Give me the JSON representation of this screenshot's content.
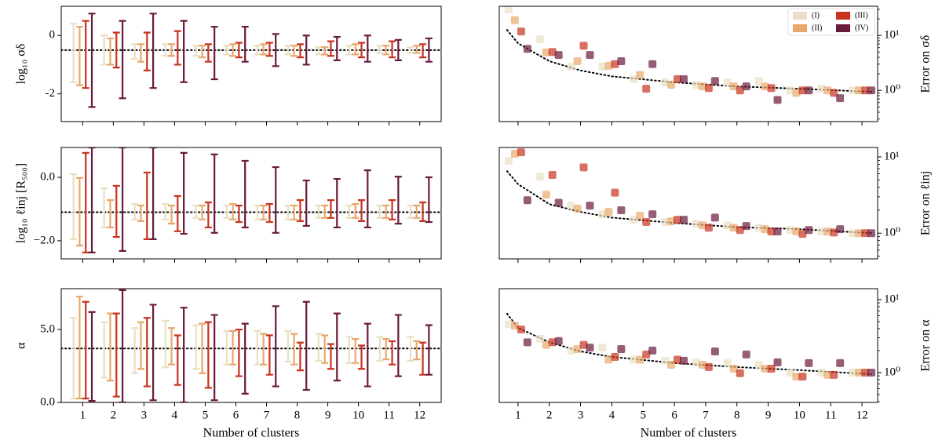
{
  "chart_data": [
    {
      "type": "errorbar",
      "ylabel": "log₁₀ σδ",
      "x": [
        1,
        2,
        3,
        4,
        5,
        6,
        7,
        8,
        9,
        10,
        11,
        12
      ],
      "xlim": [
        0.3,
        12.7
      ],
      "xticks": [
        1,
        2,
        3,
        4,
        5,
        6,
        7,
        8,
        9,
        10,
        11,
        12
      ],
      "xtick_labels": false,
      "ylim": [
        -2.95,
        1.0
      ],
      "yticks": [
        -2,
        0
      ],
      "reference": -0.5,
      "series": [
        {
          "color": "#e8dfc4",
          "low": [
            -1.6,
            -1.0,
            -0.8,
            -0.7,
            -0.7,
            -0.65,
            -0.65,
            -0.65,
            -0.65,
            -0.65,
            -0.6,
            -0.6
          ],
          "high": [
            0.4,
            0.0,
            -0.3,
            -0.3,
            -0.35,
            -0.35,
            -0.35,
            -0.35,
            -0.4,
            -0.35,
            -0.35,
            -0.4
          ]
        },
        {
          "color": "#e8a86c",
          "low": [
            -1.7,
            -1.0,
            -0.9,
            -0.7,
            -0.75,
            -0.7,
            -0.65,
            -0.7,
            -0.65,
            -0.65,
            -0.65,
            -0.6
          ],
          "high": [
            0.3,
            -0.1,
            -0.3,
            -0.3,
            -0.35,
            -0.3,
            -0.3,
            -0.35,
            -0.4,
            -0.3,
            -0.35,
            -0.35
          ]
        },
        {
          "color": "#c8321e",
          "low": [
            -1.8,
            -1.1,
            -1.2,
            -1.0,
            -0.9,
            -0.75,
            -0.7,
            -0.75,
            -0.7,
            -0.75,
            -0.75,
            -0.75
          ],
          "high": [
            0.5,
            0.1,
            0.1,
            0.15,
            -0.3,
            -0.25,
            -0.25,
            -0.3,
            -0.2,
            -0.25,
            -0.2,
            -0.3
          ]
        },
        {
          "color": "#6a1a3a",
          "low": [
            -2.45,
            -2.15,
            -1.8,
            -1.6,
            -1.5,
            -0.9,
            -1.05,
            -1.0,
            -0.85,
            -0.9,
            -0.85,
            -0.9
          ],
          "high": [
            0.75,
            0.5,
            0.75,
            0.5,
            0.3,
            0.3,
            0.05,
            0.0,
            -0.05,
            0.0,
            -0.15,
            -0.1
          ]
        }
      ]
    },
    {
      "type": "errorbar",
      "ylabel": "log₁₀ ℓinj [R₅₀₀]",
      "x": [
        1,
        2,
        3,
        4,
        5,
        6,
        7,
        8,
        9,
        10,
        11,
        12
      ],
      "xlim": [
        0.3,
        12.7
      ],
      "xticks": [
        1,
        2,
        3,
        4,
        5,
        6,
        7,
        8,
        9,
        10,
        11,
        12
      ],
      "xtick_labels": false,
      "ylim": [
        -2.57,
        0.94
      ],
      "yticks": [
        {
          "value": -2,
          "label": "−2.0"
        },
        {
          "value": 0,
          "label": "0.0"
        }
      ],
      "reference": -1.1,
      "series": [
        {
          "color": "#e8dfc4",
          "low": [
            -1.95,
            -1.58,
            -1.33,
            -1.33,
            -1.28,
            -1.28,
            -1.33,
            -1.33,
            -1.28,
            -1.28,
            -1.28,
            -1.28
          ],
          "high": [
            0.1,
            -0.35,
            -0.84,
            -0.84,
            -0.89,
            -0.89,
            -0.89,
            -0.89,
            -0.89,
            -0.89,
            -0.89,
            -0.89
          ]
        },
        {
          "color": "#e8a86c",
          "low": [
            -2.15,
            -1.58,
            -1.38,
            -1.46,
            -1.33,
            -1.33,
            -1.33,
            -1.33,
            -1.28,
            -1.28,
            -1.28,
            -1.28
          ],
          "high": [
            -0.02,
            -0.72,
            -0.89,
            -0.89,
            -0.89,
            -0.84,
            -0.89,
            -0.89,
            -0.89,
            -0.84,
            -0.89,
            -0.89
          ]
        },
        {
          "color": "#c8321e",
          "low": [
            -2.37,
            -1.88,
            -1.95,
            -1.7,
            -1.58,
            -1.41,
            -1.41,
            -1.38,
            -1.28,
            -1.38,
            -1.33,
            -1.38
          ],
          "high": [
            0.77,
            -0.27,
            0.15,
            -0.59,
            -0.79,
            -0.89,
            -0.84,
            -0.72,
            -0.72,
            -0.72,
            -0.72,
            -0.79
          ]
        },
        {
          "color": "#6a1a3a",
          "low": [
            -2.37,
            -2.32,
            -1.95,
            -1.78,
            -1.75,
            -1.58,
            -1.75,
            -1.53,
            -1.58,
            -1.58,
            -1.46,
            -1.41
          ],
          "high": [
            0.94,
            0.94,
            0.94,
            0.77,
            0.72,
            0.52,
            0.32,
            -0.1,
            -0.05,
            0.22,
            0.02,
            0.0
          ]
        }
      ]
    },
    {
      "type": "errorbar",
      "ylabel": "α",
      "xlabel": "Number of clusters",
      "x": [
        1,
        2,
        3,
        4,
        5,
        6,
        7,
        8,
        9,
        10,
        11,
        12
      ],
      "xlim": [
        0.3,
        12.7
      ],
      "xticks": [
        1,
        2,
        3,
        4,
        5,
        6,
        7,
        8,
        9,
        10,
        11,
        12
      ],
      "xtick_labels": true,
      "ylim": [
        0,
        7.8
      ],
      "yticks": [
        {
          "value": 0,
          "label": "0.0"
        },
        {
          "value": 5,
          "label": "5.0"
        }
      ],
      "reference": 3.7,
      "series": [
        {
          "color": "#e8dfc4",
          "low": [
            0.27,
            1.7,
            2.0,
            2.4,
            2.3,
            2.6,
            2.6,
            2.8,
            2.85,
            2.7,
            2.85,
            2.85
          ],
          "high": [
            5.8,
            5.5,
            5.1,
            5.6,
            5.3,
            4.9,
            4.9,
            4.9,
            4.7,
            4.5,
            4.5,
            4.5
          ]
        },
        {
          "color": "#e8a86c",
          "low": [
            0.27,
            1.5,
            2.3,
            2.6,
            2.0,
            2.6,
            2.6,
            2.6,
            2.7,
            2.7,
            2.95,
            2.95
          ],
          "high": [
            7.26,
            6.1,
            5.5,
            5.1,
            5.4,
            4.9,
            4.7,
            4.7,
            4.6,
            4.35,
            4.35,
            4.2
          ]
        },
        {
          "color": "#c8321e",
          "low": [
            0.27,
            0.4,
            1.1,
            1.2,
            1.0,
            1.8,
            1.9,
            2.2,
            2.3,
            2.3,
            2.6,
            1.9
          ],
          "high": [
            6.9,
            6.1,
            5.8,
            4.6,
            5.5,
            5.0,
            4.6,
            4.1,
            4.0,
            3.9,
            4.2,
            4.1
          ]
        },
        {
          "color": "#6a1a3a",
          "low": [
            0.1,
            0.0,
            0.15,
            0.0,
            0.15,
            0.6,
            1.1,
            0.86,
            1.5,
            1.1,
            1.8,
            1.9
          ],
          "high": [
            6.2,
            7.7,
            6.7,
            6.5,
            6.0,
            5.4,
            6.6,
            6.9,
            6.1,
            5.4,
            6.0,
            5.3
          ]
        }
      ]
    },
    {
      "type": "scatter",
      "ylabel": "Error on σδ",
      "yaxis_side": "right",
      "yscale": "log",
      "legend": "upper right",
      "alpha": 0.7,
      "x": [
        1,
        2,
        3,
        4,
        5,
        6,
        7,
        8,
        9,
        10,
        11,
        12
      ],
      "xlim": [
        0.4,
        12.5
      ],
      "xticks": [
        1,
        2,
        3,
        4,
        5,
        6,
        7,
        8,
        9,
        10,
        11,
        12
      ],
      "xtick_labels": false,
      "ylim": [
        0.27,
        34
      ],
      "yticks": [
        {
          "value": 1,
          "label": "10⁰"
        },
        {
          "value": 10,
          "label": "10¹"
        }
      ],
      "reference": {
        "x": [
          0.65,
          1,
          2,
          3,
          4,
          6,
          8,
          10,
          12.3
        ],
        "values": [
          12.6,
          7.2,
          3.4,
          2.3,
          1.8,
          1.4,
          1.18,
          1.07,
          0.94
        ]
      },
      "series": [
        {
          "name": "(I)",
          "color": "#e8dfc4",
          "values": [
            29.6,
            8.5,
            2.7,
            2.7,
            1.6,
            1.4,
            1.26,
            1.4,
            1.48,
            1.0,
            1.07,
            1.0
          ]
        },
        {
          "name": "(II)",
          "color": "#e8a86c",
          "values": [
            19,
            4.9,
            3.4,
            2.8,
            1.9,
            1.26,
            1.18,
            1.18,
            1.18,
            0.9,
            1.0,
            1.0
          ]
        },
        {
          "name": "(III)",
          "color": "#c8321e",
          "values": [
            11.8,
            5.0,
            6.5,
            3.0,
            1.07,
            1.6,
            1.1,
            1.0,
            1.1,
            1.0,
            0.9,
            1.0
          ]
        },
        {
          "name": "(IV)",
          "color": "#6a1a3a",
          "values": [
            5.7,
            4.4,
            4.4,
            3.4,
            3.0,
            1.6,
            1.48,
            1.18,
            0.67,
            1.0,
            0.72,
            1.0
          ]
        }
      ]
    },
    {
      "type": "scatter",
      "ylabel": "Error on ℓinj",
      "yaxis_side": "right",
      "yscale": "log",
      "alpha": 0.7,
      "x": [
        1,
        2,
        3,
        4,
        5,
        6,
        7,
        8,
        9,
        10,
        11,
        12
      ],
      "xlim": [
        0.4,
        12.5
      ],
      "xticks": [
        1,
        2,
        3,
        4,
        5,
        6,
        7,
        8,
        9,
        10,
        11,
        12
      ],
      "xtick_labels": false,
      "ylim": [
        0.46,
        13.3
      ],
      "yticks": [
        {
          "value": 1,
          "label": "10⁰"
        },
        {
          "value": 10,
          "label": "10¹"
        }
      ],
      "reference": {
        "x": [
          0.65,
          1,
          2,
          3,
          4,
          6,
          8,
          10,
          12.3
        ],
        "values": [
          6.5,
          4.4,
          2.4,
          1.9,
          1.6,
          1.36,
          1.2,
          1.13,
          1.0
        ]
      },
      "series": [
        {
          "color": "#e8dfc4",
          "values": [
            8.9,
            5.5,
            2.3,
            1.77,
            1.5,
            1.4,
            1.33,
            1.27,
            1.18,
            1.1,
            1.05,
            1.0
          ]
        },
        {
          "color": "#e8a86c",
          "values": [
            11,
            3.2,
            2.1,
            1.9,
            1.7,
            1.43,
            1.27,
            1.18,
            1.13,
            1.05,
            1.05,
            1.0
          ]
        },
        {
          "color": "#c8321e",
          "values": [
            11.5,
            5.8,
            7.3,
            3.4,
            1.4,
            1.5,
            1.18,
            1.1,
            1.05,
            0.98,
            1.02,
            1.0
          ]
        },
        {
          "color": "#6a1a3a",
          "values": [
            2.7,
            2.5,
            2.3,
            2.0,
            1.77,
            1.5,
            1.6,
            1.24,
            1.05,
            1.1,
            1.13,
            1.0
          ]
        }
      ]
    },
    {
      "type": "scatter",
      "ylabel": "Error on α",
      "xlabel": "Number of clusters",
      "yaxis_side": "right",
      "yscale": "log",
      "alpha": 0.7,
      "x": [
        1,
        2,
        3,
        4,
        5,
        6,
        7,
        8,
        9,
        10,
        11,
        12
      ],
      "xlim": [
        0.4,
        12.5
      ],
      "xticks": [
        1,
        2,
        3,
        4,
        5,
        6,
        7,
        8,
        9,
        10,
        11,
        12
      ],
      "xtick_labels": true,
      "ylim": [
        0.39,
        14.1
      ],
      "yticks": [
        {
          "value": 1,
          "label": "10⁰"
        },
        {
          "value": 10,
          "label": "10¹"
        }
      ],
      "reference": {
        "x": [
          0.65,
          1,
          2,
          3,
          4,
          6,
          8,
          10,
          12.3
        ],
        "values": [
          6.4,
          4.1,
          2.6,
          1.95,
          1.64,
          1.35,
          1.19,
          1.08,
          0.95
        ]
      },
      "series": [
        {
          "color": "#e8dfc4",
          "values": [
            4.6,
            2.9,
            2.0,
            2.2,
            1.5,
            1.45,
            1.38,
            1.35,
            1.28,
            1.0,
            1.0,
            1.0
          ]
        },
        {
          "color": "#e8a86c",
          "values": [
            4.4,
            2.4,
            2.1,
            1.5,
            1.5,
            1.28,
            1.28,
            1.13,
            1.13,
            0.88,
            0.93,
            1.0
          ]
        },
        {
          "color": "#c8321e",
          "values": [
            3.9,
            2.6,
            2.4,
            1.64,
            1.77,
            1.5,
            1.19,
            0.98,
            1.13,
            0.88,
            0.93,
            1.0
          ]
        },
        {
          "color": "#6a1a3a",
          "values": [
            2.6,
            2.7,
            2.2,
            2.1,
            2.0,
            1.45,
            1.95,
            1.77,
            1.38,
            1.35,
            1.35,
            1.0
          ]
        }
      ]
    }
  ]
}
